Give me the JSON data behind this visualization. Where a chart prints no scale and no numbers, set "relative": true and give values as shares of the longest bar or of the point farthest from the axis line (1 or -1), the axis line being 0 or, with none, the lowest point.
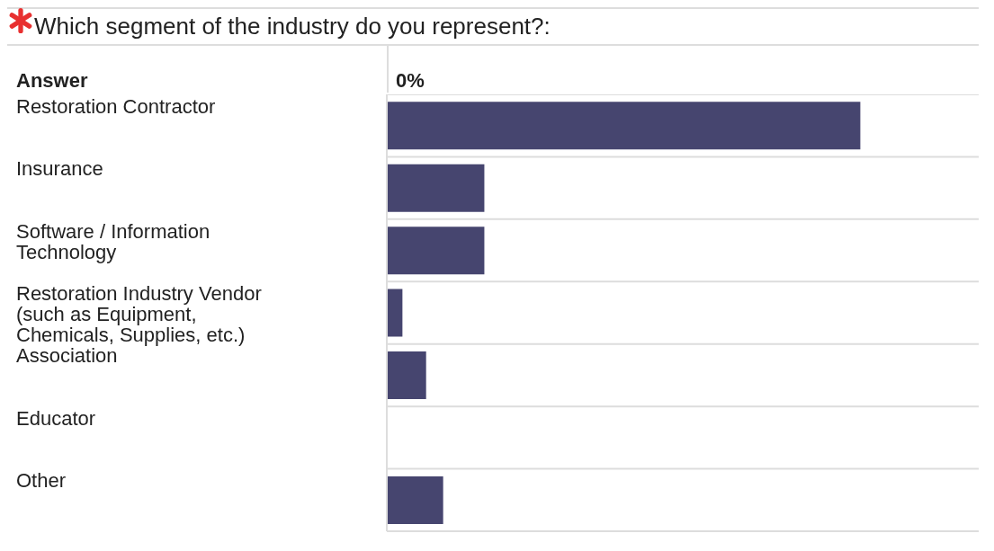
{
  "chart_data": {
    "type": "bar",
    "orientation": "horizontal",
    "relative": true,
    "title": "Which segment of the industry do you represent?:",
    "ylabel": "Answer",
    "annotations": [
      "0%"
    ],
    "categories": [
      "Restoration Contractor",
      "Insurance",
      "Software / Information Technology",
      "Restoration Industry Vendor (such as Equipment, Chemicals, Supplies, etc.)",
      "Association",
      "Educator",
      "Other"
    ],
    "values": [
      1,
      0.206,
      0.206,
      0.033,
      0.083,
      0,
      0.119
    ],
    "color": "#46456f",
    "grid": "y"
  }
}
